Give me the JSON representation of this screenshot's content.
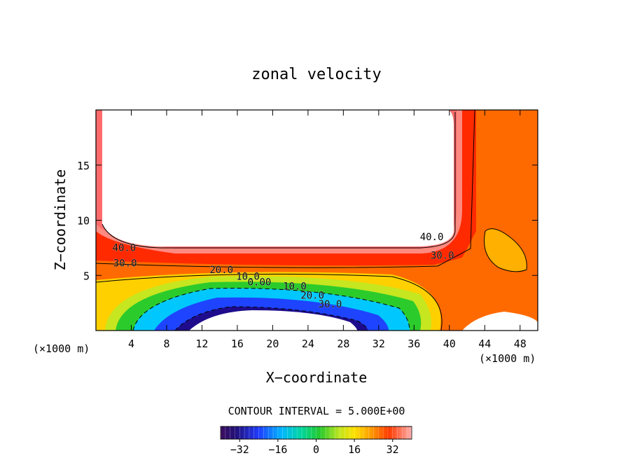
{
  "chart_data": {
    "type": "heatmap",
    "title": "zonal velocity",
    "xlabel": "X−coordinate",
    "ylabel": "Z−coordinate",
    "x_unit_left": "(×1000 m)",
    "x_unit_right": "(×1000 m)",
    "xlim": [
      0,
      50
    ],
    "ylim": [
      0,
      20
    ],
    "x_ticks": [
      4,
      8,
      12,
      16,
      20,
      24,
      28,
      32,
      36,
      40,
      44,
      48
    ],
    "y_ticks": [
      5,
      10,
      15
    ],
    "contour_interval_label": "CONTOUR INTERVAL = 5.000E+00",
    "contour_interval": 5,
    "colorbar": {
      "range": [
        -40,
        40
      ],
      "ticks": [
        -32,
        -16,
        0,
        16,
        32
      ],
      "tick_labels": [
        "−32",
        "−16",
        "0",
        "16",
        "32"
      ]
    },
    "contour_labels": [
      {
        "text": "40.0",
        "x": 3.2,
        "z": 7.2
      },
      {
        "text": "30.0",
        "x": 3.3,
        "z": 5.8
      },
      {
        "text": "20.0",
        "x": 14.2,
        "z": 5.2
      },
      {
        "text": "10.0",
        "x": 17.2,
        "z": 4.6
      },
      {
        "text": "0.00",
        "x": 18.5,
        "z": 4.1
      },
      {
        "text": "10.0",
        "x": 22.5,
        "z": 3.7
      },
      {
        "text": "20.0",
        "x": 24.5,
        "z": 2.9
      },
      {
        "text": "30.0",
        "x": 26.5,
        "z": 2.1
      },
      {
        "text": "40.0",
        "x": 38.0,
        "z": 8.2
      },
      {
        "text": "30.0",
        "x": 39.2,
        "z": 6.5
      }
    ],
    "features": [
      {
        "name": "upper-jet-region",
        "x_range": [
          0,
          40
        ],
        "z_range": [
          7,
          20
        ],
        "value_min": 40
      },
      {
        "name": "lower-reverse-jet",
        "center_x": 20,
        "center_z": 0,
        "value_min": -40
      },
      {
        "name": "right-column-max",
        "center_x": 45.5,
        "center_z": 7,
        "value": 30
      },
      {
        "name": "bottom-right-region",
        "x_range": [
          43,
          50
        ],
        "z_range": [
          0,
          2
        ],
        "value_min": 40
      }
    ]
  }
}
